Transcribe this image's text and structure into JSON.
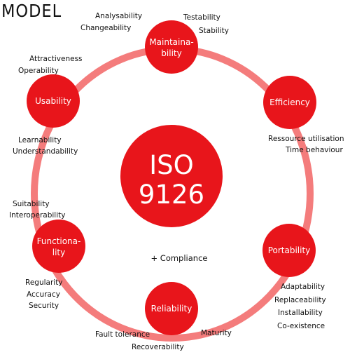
{
  "heading": "MODEL",
  "center": {
    "line1": "ISO",
    "line2": "9126"
  },
  "colors": {
    "node": "#e8151b",
    "ring": "#f47c7c",
    "text": "#111111"
  },
  "compliance": "+ Compliance",
  "nodes": [
    {
      "id": "maintainability",
      "lines": [
        "Maintaina-",
        "bility"
      ],
      "subs": [
        "Analysability",
        "Changeability",
        "Testability",
        "Stability"
      ]
    },
    {
      "id": "efficiency",
      "lines": [
        "Efficiency"
      ],
      "subs": [
        "Ressource utilisation",
        "Time behaviour"
      ]
    },
    {
      "id": "portability",
      "lines": [
        "Portability"
      ],
      "subs": [
        "Adaptability",
        "Replaceability",
        "Installability",
        "Co-existence"
      ]
    },
    {
      "id": "reliability",
      "lines": [
        "Reliability"
      ],
      "subs": [
        "Fault tolerance",
        "Maturity",
        "Recoverability"
      ]
    },
    {
      "id": "functionality",
      "lines": [
        "Functiona-",
        "lity"
      ],
      "subs": [
        "Suitability",
        "Interoperability",
        "Regularity",
        "Accuracy",
        "Security"
      ]
    },
    {
      "id": "usability",
      "lines": [
        "Usability"
      ],
      "subs": [
        "Attractiveness",
        "Operability",
        "Learnability",
        "Understandability"
      ]
    }
  ]
}
